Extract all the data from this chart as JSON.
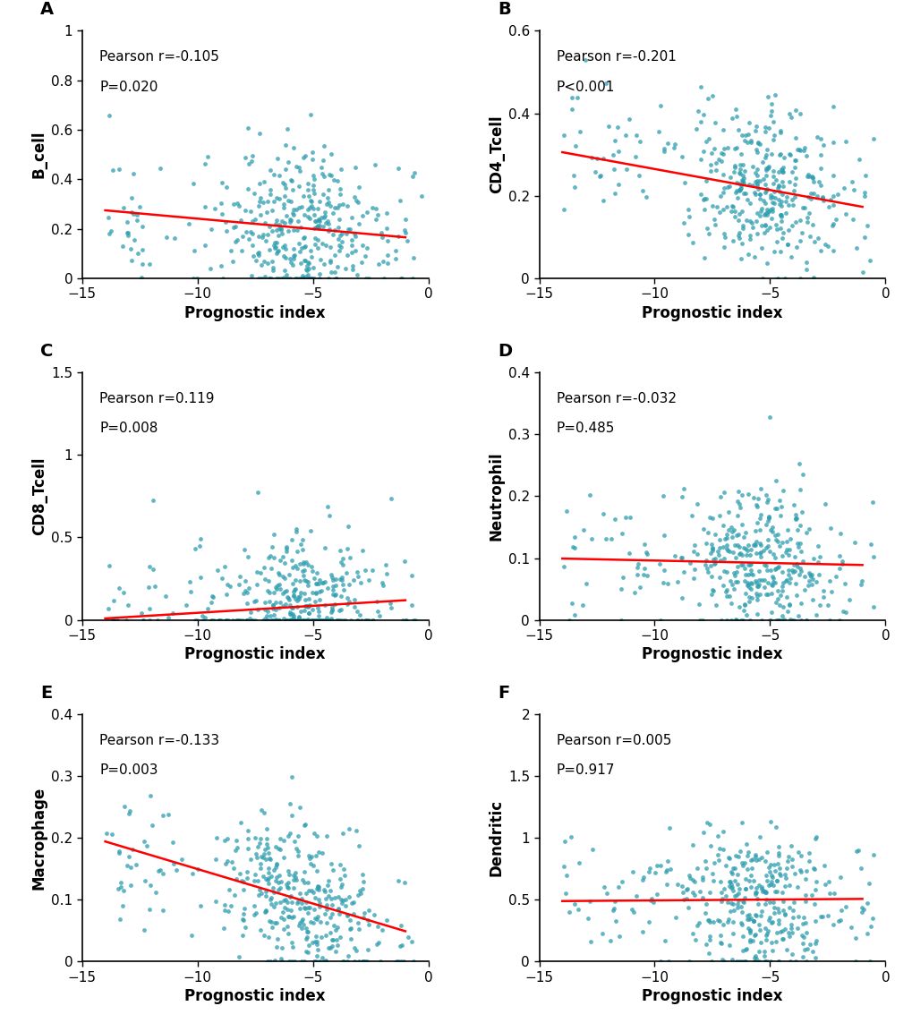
{
  "panels": [
    {
      "label": "A",
      "ylabel": "B_cell",
      "pearson_r": -0.105,
      "p_value": "P=0.020",
      "xlim": [
        -15,
        0
      ],
      "ylim": [
        0,
        1.0
      ],
      "yticks": [
        0.0,
        0.2,
        0.4,
        0.6,
        0.8,
        1.0
      ],
      "xticks": [
        -15,
        -10,
        -5,
        0
      ],
      "slope": -0.00839,
      "intercept": 0.157,
      "x_line_start": -14,
      "x_line_end": -1
    },
    {
      "label": "B",
      "ylabel": "CD4_Tcell",
      "pearson_r": -0.201,
      "p_value": "P<0.001",
      "xlim": [
        -15,
        0
      ],
      "ylim": [
        0,
        0.6
      ],
      "yticks": [
        0.0,
        0.2,
        0.4,
        0.6
      ],
      "xticks": [
        -15,
        -10,
        -5,
        0
      ],
      "slope": -0.01018,
      "intercept": 0.163,
      "x_line_start": -14,
      "x_line_end": -1
    },
    {
      "label": "C",
      "ylabel": "CD8_Tcell",
      "pearson_r": 0.119,
      "p_value": "P=0.008",
      "xlim": [
        -15,
        0
      ],
      "ylim": [
        0,
        1.5
      ],
      "yticks": [
        0.0,
        0.5,
        1.0,
        1.5
      ],
      "xticks": [
        -15,
        -10,
        -5,
        0
      ],
      "slope": 0.00848,
      "intercept": 0.128,
      "x_line_start": -14,
      "x_line_end": -1
    },
    {
      "label": "D",
      "ylabel": "Neutrophil",
      "pearson_r": -0.032,
      "p_value": "P=0.485",
      "xlim": [
        -15,
        0
      ],
      "ylim": [
        0,
        0.4
      ],
      "yticks": [
        0.0,
        0.1,
        0.2,
        0.3,
        0.4
      ],
      "xticks": [
        -15,
        -10,
        -5,
        0
      ],
      "slope": -0.0008,
      "intercept": 0.088,
      "x_line_start": -14,
      "x_line_end": -1
    },
    {
      "label": "E",
      "ylabel": "Macrophage",
      "pearson_r": -0.133,
      "p_value": "P=0.003",
      "xlim": [
        -15,
        0
      ],
      "ylim": [
        0,
        0.4
      ],
      "yticks": [
        0.0,
        0.1,
        0.2,
        0.3,
        0.4
      ],
      "xticks": [
        -15,
        -10,
        -5,
        0
      ],
      "slope": -0.01115,
      "intercept": 0.038,
      "x_line_start": -14,
      "x_line_end": -1
    },
    {
      "label": "F",
      "ylabel": "Dendritic",
      "pearson_r": 0.005,
      "p_value": "P=0.917",
      "xlim": [
        -15,
        0
      ],
      "ylim": [
        0,
        2.0
      ],
      "yticks": [
        0.0,
        0.5,
        1.0,
        1.5,
        2.0
      ],
      "xticks": [
        -15,
        -10,
        -5,
        0
      ],
      "slope": 0.00134,
      "intercept": 0.508,
      "x_line_start": -14,
      "x_line_end": -1
    }
  ],
  "dot_color": "#2E9EB0",
  "line_color": "#FF0000",
  "dot_size": 12,
  "dot_alpha": 0.75,
  "xlabel": "Prognostic index",
  "annotation_fontsize": 11,
  "label_fontsize": 14,
  "tick_fontsize": 11,
  "axis_label_fontsize": 12
}
